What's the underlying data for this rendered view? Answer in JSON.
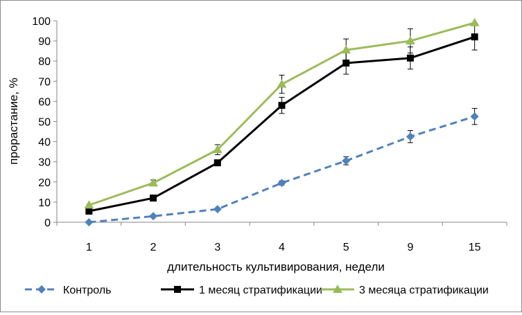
{
  "chart_data": {
    "type": "line",
    "title": "",
    "xlabel": "длительность культивирования, недели",
    "ylabel": "прорастание, %",
    "ylim": [
      0,
      100
    ],
    "yticks": [
      0,
      10,
      20,
      30,
      40,
      50,
      60,
      70,
      80,
      90,
      100
    ],
    "categories": [
      "1",
      "2",
      "3",
      "4",
      "5",
      "9",
      "15"
    ],
    "grid": false,
    "legend_position": "bottom",
    "series": [
      {
        "name": "Контроль",
        "color": "#4f81bd",
        "line_style": "dashed",
        "marker": "diamond",
        "values": [
          0,
          3,
          6.5,
          19.5,
          30.5,
          42.5,
          52.5
        ],
        "errors": [
          0,
          0,
          0,
          1,
          2,
          3,
          4
        ]
      },
      {
        "name": "1 месяц стратификации",
        "color": "#000000",
        "line_style": "solid",
        "marker": "square",
        "values": [
          5.5,
          12,
          29.5,
          58,
          79,
          81.5,
          92
        ],
        "errors": [
          0,
          0,
          0,
          4,
          5.5,
          5.5,
          6.5
        ]
      },
      {
        "name": "3 месяца стратификации",
        "color": "#9bbb59",
        "line_style": "solid",
        "marker": "triangle",
        "values": [
          8.5,
          19.5,
          36,
          68.5,
          85.5,
          90,
          99
        ],
        "errors": [
          0,
          1.5,
          2.5,
          4.5,
          5.5,
          6,
          0
        ]
      }
    ]
  }
}
